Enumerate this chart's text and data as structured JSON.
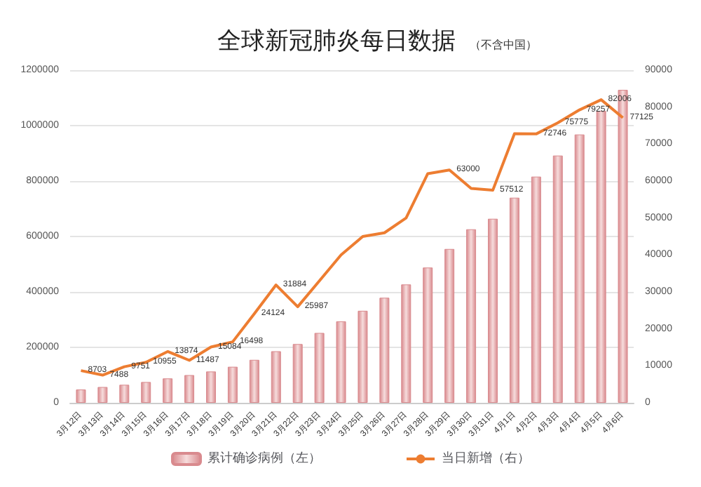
{
  "chart_data": {
    "type": "bar",
    "title": "全球新冠肺炎每日数据",
    "subtitle": "（不含中国）",
    "categories": [
      "3月12日",
      "3月13日",
      "3月14日",
      "3月15日",
      "3月16日",
      "3月17日",
      "3月18日",
      "3月19日",
      "3月20日",
      "3月21日",
      "3月22日",
      "3月23日",
      "3月24日",
      "3月25日",
      "3月26日",
      "3月27日",
      "3月28日",
      "3月29日",
      "3月30日",
      "3月31日",
      "4月1日",
      "4月2日",
      "4月3日",
      "4月4日",
      "4月5日",
      "4月6日"
    ],
    "series": [
      {
        "name": "累计确诊病例（左）",
        "color": "#d98a8e",
        "values": [
          48000,
          57000,
          65000,
          75000,
          88000,
          100000,
          113000,
          130000,
          155000,
          186000,
          212000,
          252000,
          294000,
          332000,
          379000,
          427000,
          488000,
          555000,
          626000,
          664000,
          740000,
          816000,
          892000,
          968000,
          1053000,
          1129000
        ]
      },
      {
        "name": "当日新增（右）",
        "type": "line",
        "axis": "y2",
        "color": "#ed7d31",
        "values": [
          8703,
          7488,
          9751,
          10955,
          13874,
          11487,
          15084,
          16498,
          24124,
          31884,
          25987,
          33000,
          40000,
          45000,
          46000,
          50000,
          62000,
          63000,
          58000,
          57512,
          72800,
          72746,
          75775,
          79257,
          82006,
          77125
        ],
        "value_labels": [
          "8703",
          "7488",
          "9751",
          "10955",
          "13874",
          "11487",
          "15084",
          "16498",
          "24124",
          "31884",
          "25987",
          null,
          null,
          null,
          null,
          null,
          null,
          "63000",
          null,
          "57512",
          null,
          "72746",
          "75775",
          "79257",
          "82006",
          "77125"
        ]
      }
    ],
    "ylim": [
      0,
      1200000
    ],
    "yticks": [
      0,
      200000,
      400000,
      600000,
      800000,
      1000000,
      1200000
    ],
    "y2lim": [
      0,
      90000
    ],
    "y2ticks": [
      0,
      10000,
      20000,
      30000,
      40000,
      50000,
      60000,
      70000,
      80000,
      90000
    ],
    "grid": "y",
    "legend": "bottom",
    "marker": "none"
  }
}
